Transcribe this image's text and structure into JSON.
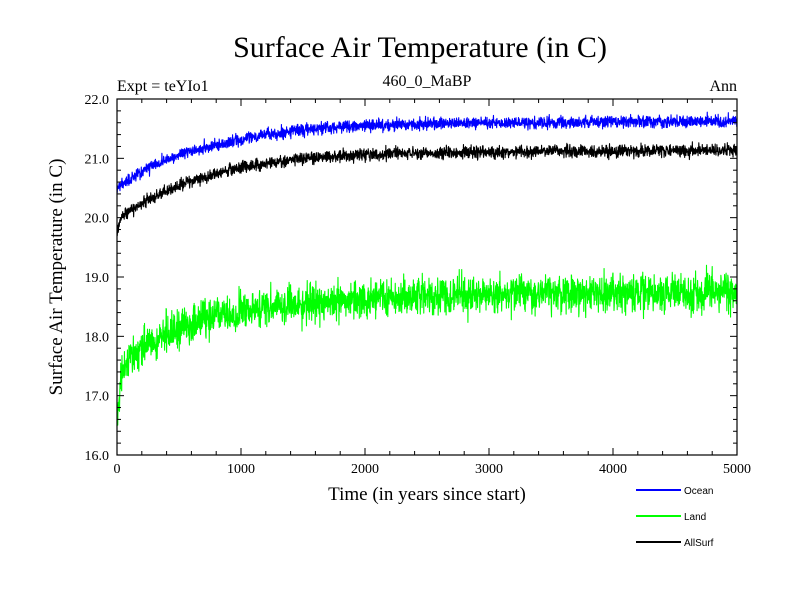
{
  "chart_data": {
    "type": "line",
    "title": "Surface Air Temperature (in C)",
    "subtitle_left": "Expt = teYIo1",
    "subtitle_center": "460_0_MaBP",
    "subtitle_right": "Ann",
    "xlabel": "Time (in years since start)",
    "ylabel": "Surface Air Temperature (in C)",
    "xlim": [
      0,
      5000
    ],
    "ylim": [
      16.0,
      22.0
    ],
    "xticks": [
      0,
      1000,
      2000,
      3000,
      4000,
      5000
    ],
    "xtick_labels": [
      "0",
      "1000",
      "2000",
      "3000",
      "4000",
      "5000"
    ],
    "yticks": [
      16.0,
      17.0,
      18.0,
      19.0,
      20.0,
      21.0,
      22.0
    ],
    "ytick_labels": [
      "16.0",
      "17.0",
      "18.0",
      "19.0",
      "20.0",
      "21.0",
      "22.0"
    ],
    "legend_position": "bottom-right, below plot",
    "series": [
      {
        "name": "Ocean",
        "color": "#0000ff",
        "noise": 0.05,
        "x": [
          0,
          100,
          250,
          500,
          750,
          1000,
          1250,
          1500,
          1750,
          2000,
          2500,
          3000,
          3500,
          4000,
          4500,
          5000
        ],
        "values": [
          20.5,
          20.65,
          20.85,
          21.05,
          21.2,
          21.32,
          21.4,
          21.48,
          21.52,
          21.55,
          21.58,
          21.6,
          21.6,
          21.62,
          21.62,
          21.63
        ]
      },
      {
        "name": "Land",
        "color": "#00ff00",
        "noise": 0.15,
        "x": [
          0,
          30,
          100,
          250,
          500,
          750,
          1000,
          1250,
          1500,
          1750,
          2000,
          2500,
          3000,
          3500,
          4000,
          4500,
          5000
        ],
        "values": [
          16.4,
          17.3,
          17.6,
          17.9,
          18.15,
          18.3,
          18.42,
          18.5,
          18.55,
          18.6,
          18.63,
          18.67,
          18.7,
          18.72,
          18.72,
          18.73,
          18.75
        ]
      },
      {
        "name": "AllSurf",
        "color": "#000000",
        "noise": 0.05,
        "x": [
          0,
          30,
          100,
          250,
          500,
          750,
          1000,
          1250,
          1500,
          1750,
          2000,
          2500,
          3000,
          3500,
          4000,
          4500,
          5000
        ],
        "values": [
          19.7,
          20.0,
          20.1,
          20.3,
          20.55,
          20.72,
          20.85,
          20.93,
          21.0,
          21.03,
          21.06,
          21.09,
          21.1,
          21.12,
          21.12,
          21.13,
          21.14
        ]
      }
    ]
  }
}
